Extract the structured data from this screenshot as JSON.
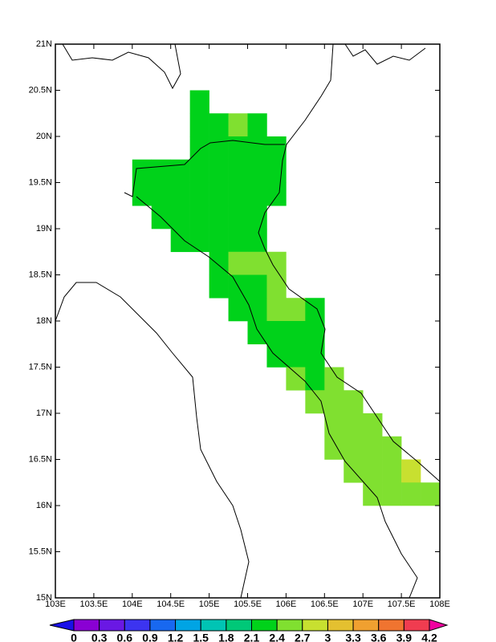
{
  "chart_data": {
    "type": "gridded-map",
    "xlim": [
      103,
      108
    ],
    "ylim": [
      15,
      21
    ],
    "xticks": [
      {
        "value": 103,
        "label": "103E"
      },
      {
        "value": 103.5,
        "label": "103.5E"
      },
      {
        "value": 104,
        "label": "104E"
      },
      {
        "value": 104.5,
        "label": "104.5E"
      },
      {
        "value": 105,
        "label": "105E"
      },
      {
        "value": 105.5,
        "label": "105.5E"
      },
      {
        "value": 106,
        "label": "106E"
      },
      {
        "value": 106.5,
        "label": "106.5E"
      },
      {
        "value": 107,
        "label": "107E"
      },
      {
        "value": 107.5,
        "label": "107.5E"
      },
      {
        "value": 108,
        "label": "108E"
      }
    ],
    "yticks": [
      {
        "value": 15,
        "label": "15N"
      },
      {
        "value": 15.5,
        "label": "15.5N"
      },
      {
        "value": 16,
        "label": "16N"
      },
      {
        "value": 16.5,
        "label": "16.5N"
      },
      {
        "value": 17,
        "label": "17N"
      },
      {
        "value": 17.5,
        "label": "17.5N"
      },
      {
        "value": 18,
        "label": "18N"
      },
      {
        "value": 18.5,
        "label": "18.5N"
      },
      {
        "value": 19,
        "label": "19N"
      },
      {
        "value": 19.5,
        "label": "19.5N"
      },
      {
        "value": 20,
        "label": "20N"
      },
      {
        "value": 20.5,
        "label": "20.5N"
      },
      {
        "value": 21,
        "label": "21N"
      }
    ],
    "cell_size": 0.25,
    "cells": [
      [
        104.75,
        20.25,
        2.2
      ],
      [
        104.75,
        20,
        2.2
      ],
      [
        105,
        20,
        2.2
      ],
      [
        105.25,
        20,
        2.5
      ],
      [
        105.5,
        20,
        2.2
      ],
      [
        104.75,
        19.75,
        2.2
      ],
      [
        105,
        19.75,
        2.2
      ],
      [
        105.25,
        19.75,
        2.2
      ],
      [
        105.5,
        19.75,
        2.2
      ],
      [
        105.75,
        19.75,
        2.2
      ],
      [
        104,
        19.5,
        2.2
      ],
      [
        104.25,
        19.5,
        2.2
      ],
      [
        104.5,
        19.5,
        2.2
      ],
      [
        104.75,
        19.5,
        2.2
      ],
      [
        105,
        19.5,
        2.2
      ],
      [
        105.25,
        19.5,
        2.2
      ],
      [
        105.5,
        19.5,
        2.2
      ],
      [
        105.75,
        19.5,
        2.2
      ],
      [
        104,
        19.25,
        2.2
      ],
      [
        104.25,
        19.25,
        2.2
      ],
      [
        104.5,
        19.25,
        2.2
      ],
      [
        104.75,
        19.25,
        2.2
      ],
      [
        105,
        19.25,
        2.2
      ],
      [
        105.25,
        19.25,
        2.2
      ],
      [
        105.5,
        19.25,
        2.2
      ],
      [
        105.75,
        19.25,
        2.2
      ],
      [
        104.25,
        19,
        2.2
      ],
      [
        104.5,
        19,
        2.2
      ],
      [
        104.75,
        19,
        2.2
      ],
      [
        105,
        19,
        2.2
      ],
      [
        105.25,
        19,
        2.2
      ],
      [
        105.5,
        19,
        2.2
      ],
      [
        104.5,
        18.75,
        2.2
      ],
      [
        104.75,
        18.75,
        2.2
      ],
      [
        105,
        18.75,
        2.2
      ],
      [
        105.25,
        18.75,
        2.2
      ],
      [
        105.5,
        18.75,
        2.2
      ],
      [
        105,
        18.5,
        2.2
      ],
      [
        105.25,
        18.5,
        2.5
      ],
      [
        105.5,
        18.5,
        2.5
      ],
      [
        105.75,
        18.5,
        2.5
      ],
      [
        105,
        18.25,
        2.2
      ],
      [
        105.25,
        18.25,
        2.2
      ],
      [
        105.5,
        18.25,
        2.2
      ],
      [
        105.75,
        18.25,
        2.5
      ],
      [
        105.25,
        18,
        2.2
      ],
      [
        105.5,
        18,
        2.2
      ],
      [
        105.75,
        18,
        2.5
      ],
      [
        106,
        18,
        2.5
      ],
      [
        106.25,
        18,
        2.2
      ],
      [
        105.5,
        17.75,
        2.2
      ],
      [
        105.75,
        17.75,
        2.2
      ],
      [
        106,
        17.75,
        2.2
      ],
      [
        106.25,
        17.75,
        2.2
      ],
      [
        105.75,
        17.5,
        2.2
      ],
      [
        106,
        17.5,
        2.2
      ],
      [
        106.25,
        17.5,
        2.2
      ],
      [
        106,
        17.25,
        2.5
      ],
      [
        106.25,
        17.25,
        2.2
      ],
      [
        106.5,
        17.25,
        2.5
      ],
      [
        106.25,
        17,
        2.5
      ],
      [
        106.5,
        17,
        2.5
      ],
      [
        106.75,
        17,
        2.5
      ],
      [
        106.5,
        16.75,
        2.5
      ],
      [
        106.75,
        16.75,
        2.5
      ],
      [
        107,
        16.75,
        2.5
      ],
      [
        106.5,
        16.5,
        2.5
      ],
      [
        106.75,
        16.5,
        2.5
      ],
      [
        107,
        16.5,
        2.5
      ],
      [
        107.25,
        16.5,
        2.5
      ],
      [
        106.75,
        16.25,
        2.5
      ],
      [
        107,
        16.25,
        2.5
      ],
      [
        107.25,
        16.25,
        2.5
      ],
      [
        107.5,
        16.25,
        2.8
      ],
      [
        107,
        16,
        2.5
      ],
      [
        107.25,
        16,
        2.5
      ],
      [
        107.5,
        16,
        2.5
      ],
      [
        107.75,
        16,
        2.5
      ]
    ],
    "colorbar": {
      "levels": [
        0,
        0.3,
        0.6,
        0.9,
        1.2,
        1.5,
        1.8,
        2.1,
        2.4,
        2.7,
        3,
        3.3,
        3.6,
        3.9,
        4.2
      ],
      "colors": [
        "#1a10e8",
        "#8a00d4",
        "#6a18e4",
        "#3c34f0",
        "#1868f0",
        "#00a4e4",
        "#00c4b4",
        "#00c878",
        "#00d21a",
        "#80e030",
        "#c8e030",
        "#e4c030",
        "#f0a030",
        "#f07430",
        "#f03c50",
        "#f000a0"
      ]
    }
  }
}
